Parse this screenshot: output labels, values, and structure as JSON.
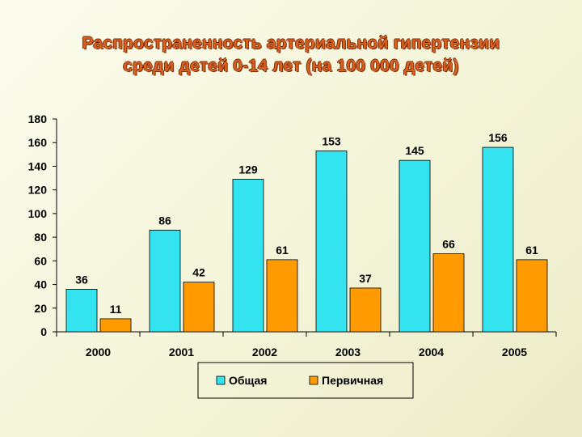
{
  "title_lines": [
    "Распространенность артериальной гипертензии",
    "среди детей 0-14 лет (на 100 000 детей)"
  ],
  "colors": {
    "title": "#d85f1e",
    "series_0": "#33e3f0",
    "series_1": "#ff9a00"
  },
  "chart_data": {
    "type": "bar",
    "title": "Распространенность артериальной гипертензии среди детей 0-14 лет (на 100 000 детей)",
    "categories": [
      "2000",
      "2001",
      "2002",
      "2003",
      "2004",
      "2005"
    ],
    "series": [
      {
        "name": "Общая",
        "values": [
          36,
          86,
          129,
          153,
          145,
          156
        ]
      },
      {
        "name": "Первичная",
        "values": [
          11,
          42,
          61,
          37,
          66,
          61
        ]
      }
    ],
    "data_labels": [
      [
        "36",
        "86",
        "129",
        "153",
        "145",
        "156"
      ],
      [
        "11",
        "42",
        "61",
        "37",
        "66",
        "61"
      ]
    ],
    "ylim": [
      0,
      180
    ],
    "yticks": [
      "0",
      "20",
      "40",
      "60",
      "80",
      "100",
      "120",
      "140",
      "160",
      "180"
    ],
    "grid": false,
    "legend_position": "bottom",
    "xlabel": "",
    "ylabel": ""
  }
}
